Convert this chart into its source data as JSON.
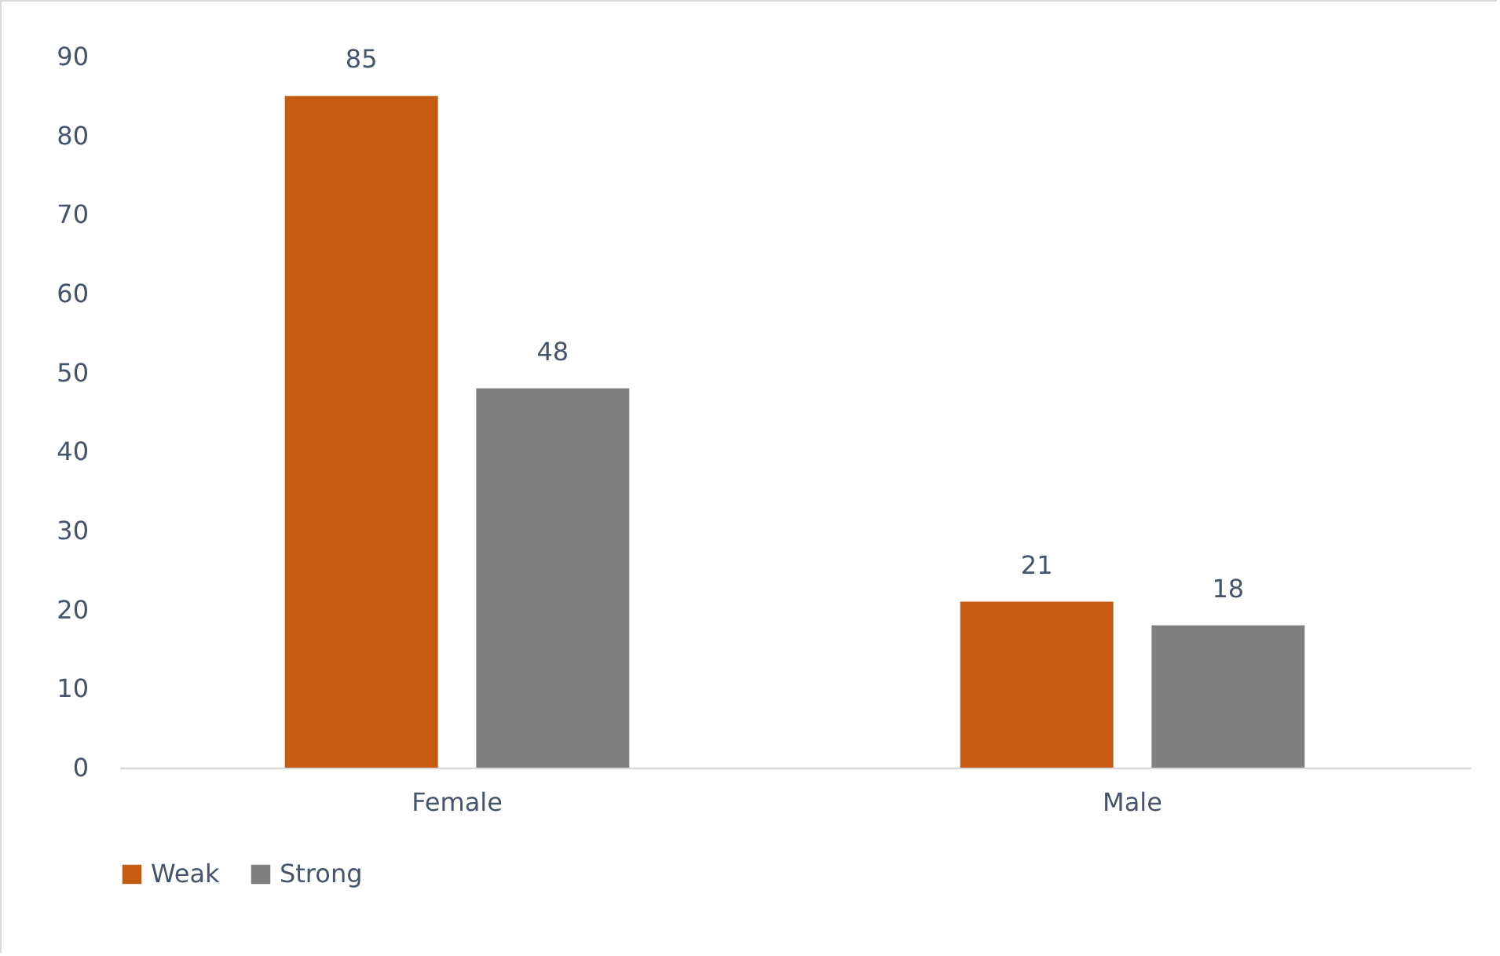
{
  "chart_data": {
    "type": "bar",
    "categories": [
      "Female",
      "Male"
    ],
    "series": [
      {
        "name": "Weak",
        "color": "#c55a11",
        "values": [
          85,
          21
        ]
      },
      {
        "name": "Strong",
        "color": "#7f7f7f",
        "values": [
          48,
          18
        ]
      }
    ],
    "ylim": [
      0,
      90
    ],
    "yticks": [
      0,
      10,
      20,
      30,
      40,
      50,
      60,
      70,
      80,
      90
    ],
    "grid": false,
    "data_labels": true,
    "legend": "bottom"
  }
}
